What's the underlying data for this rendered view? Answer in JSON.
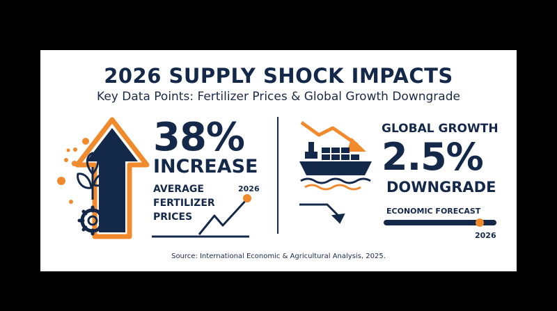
{
  "header": {
    "title": "2026 SUPPLY SHOCK IMPACTS",
    "subtitle": "Key Data Points: Fertilizer Prices & Global Growth Downgrade"
  },
  "left_panel": {
    "headline_value": "38%",
    "headline_label": "INCREASE",
    "description": "AVERAGE FERTILIZER PRICES",
    "year": "2026"
  },
  "right_panel": {
    "label_top": "GLOBAL GROWTH",
    "headline_value": "2.5%",
    "headline_label": "DOWNGRADE",
    "forecast_label": "ECONOMIC FORECAST",
    "forecast_progress": 0.85,
    "year": "2026"
  },
  "footer": {
    "source": "Source: International Economic & Agricultural Analysis, 2025."
  },
  "colors": {
    "navy": "#14294a",
    "orange": "#f08a2c",
    "background": "#ffffff",
    "frame": "#000000"
  },
  "icons": [
    "up-arrow-icon",
    "plant-gear-icon",
    "line-chart-icon",
    "cargo-ship-icon",
    "down-trend-arrow-icon",
    "decline-arrow-icon"
  ]
}
